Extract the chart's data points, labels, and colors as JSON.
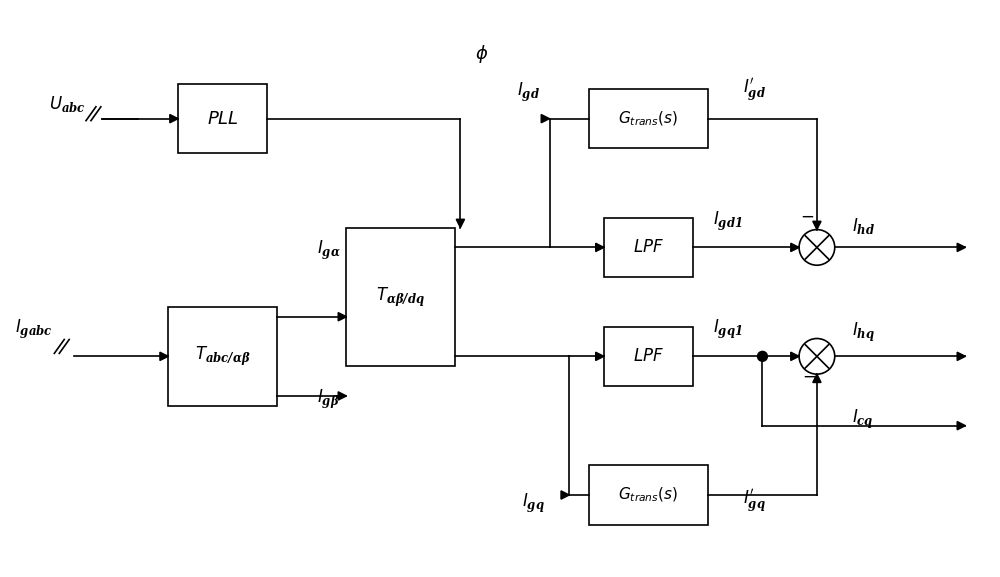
{
  "bg_color": "#ffffff",
  "line_color": "#000000",
  "box_color": "#000000",
  "fig_width": 10.0,
  "fig_height": 5.77
}
